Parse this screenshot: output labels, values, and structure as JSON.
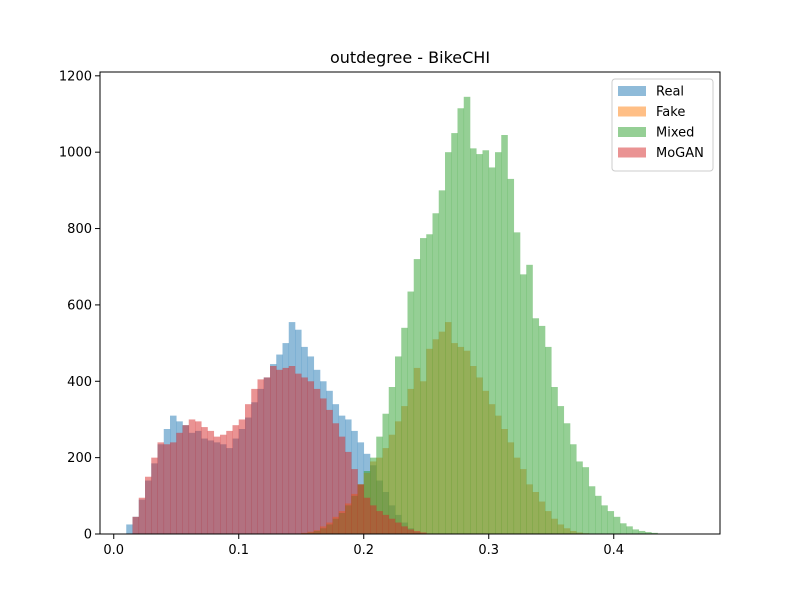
{
  "chart_data": {
    "type": "bar",
    "subtype": "overlaid-histogram",
    "title": "outdegree - BikeCHI",
    "xlabel": "",
    "ylabel": "",
    "xlim": [
      -0.011,
      0.485
    ],
    "ylim": [
      0,
      1210
    ],
    "xticks": [
      0.0,
      0.1,
      0.2,
      0.3,
      0.4
    ],
    "xtick_labels": [
      "0.0",
      "0.1",
      "0.2",
      "0.3",
      "0.4"
    ],
    "yticks": [
      0,
      200,
      400,
      600,
      800,
      1000,
      1200
    ],
    "ytick_labels": [
      "0",
      "200",
      "400",
      "600",
      "800",
      "1000",
      "1200"
    ],
    "grid": false,
    "legend_position": "top-right",
    "series": [
      {
        "name": "Real",
        "color": "#1f77b4",
        "alpha": 0.5,
        "bin_start": 0.01,
        "bin_width": 0.005,
        "values": [
          25,
          45,
          90,
          140,
          185,
          235,
          275,
          310,
          295,
          285,
          265,
          270,
          250,
          245,
          240,
          235,
          225,
          250,
          275,
          305,
          345,
          380,
          410,
          445,
          470,
          500,
          555,
          535,
          490,
          465,
          430,
          400,
          375,
          340,
          310,
          300,
          270,
          240,
          210,
          180,
          140,
          110,
          75,
          50,
          30,
          15,
          5
        ]
      },
      {
        "name": "Fake",
        "color": "#ff7f0e",
        "alpha": 0.5,
        "bin_start": 0.15,
        "bin_width": 0.005,
        "values": [
          3,
          6,
          10,
          20,
          30,
          45,
          60,
          80,
          105,
          130,
          160,
          190,
          200,
          225,
          260,
          295,
          335,
          380,
          435,
          400,
          485,
          510,
          530,
          555,
          500,
          490,
          480,
          440,
          410,
          375,
          340,
          310,
          275,
          240,
          200,
          170,
          130,
          110,
          85,
          60,
          40,
          25,
          15,
          8,
          4,
          2
        ]
      },
      {
        "name": "Mixed",
        "color": "#2ca02c",
        "alpha": 0.5,
        "bin_start": 0.15,
        "bin_width": 0.005,
        "values": [
          2,
          4,
          8,
          15,
          25,
          40,
          55,
          75,
          100,
          130,
          165,
          200,
          255,
          315,
          385,
          465,
          540,
          635,
          720,
          775,
          785,
          840,
          900,
          1000,
          1050,
          1115,
          1145,
          1010,
          995,
          1005,
          960,
          1000,
          1045,
          930,
          790,
          680,
          705,
          565,
          545,
          490,
          385,
          335,
          290,
          235,
          190,
          175,
          125,
          100,
          75,
          60,
          45,
          28,
          20,
          12,
          8,
          5,
          3
        ]
      },
      {
        "name": "MoGAN",
        "color": "#d62728",
        "alpha": 0.5,
        "bin_start": 0.015,
        "bin_width": 0.005,
        "values": [
          45,
          95,
          150,
          200,
          240,
          235,
          240,
          265,
          285,
          300,
          295,
          280,
          270,
          255,
          260,
          270,
          285,
          300,
          340,
          380,
          405,
          410,
          440,
          430,
          435,
          440,
          420,
          410,
          400,
          380,
          355,
          325,
          290,
          255,
          215,
          170,
          130,
          95,
          75,
          60,
          50,
          40,
          30,
          20,
          12,
          8,
          4
        ]
      }
    ]
  }
}
